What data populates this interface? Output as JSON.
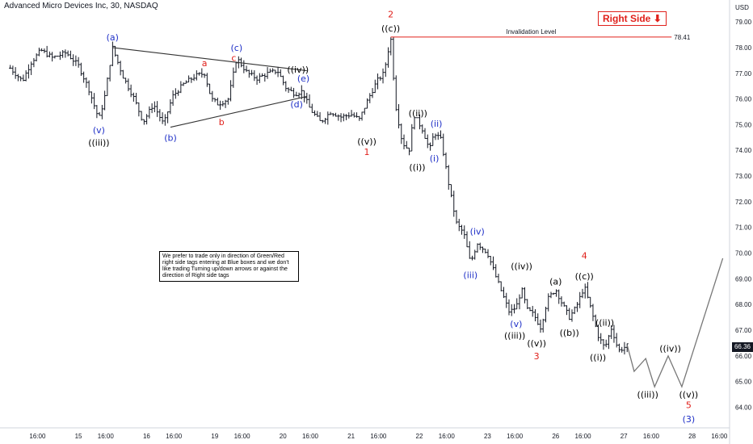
{
  "title": "Advanced Micro Devices Inc, 30, NASDAQ",
  "currency": "USD",
  "last_price": "66.36",
  "right_side_label": "Right Side",
  "right_side_arrow": "⬇",
  "invalidation": {
    "label": "Invalidation Level",
    "value": "78.41"
  },
  "note": "We prefer to trade only in direction of Green/Red right side tags entering at Blue boxes and we don't like trading Turning up/down arrows or against the direction of Right side tags",
  "colors": {
    "red": "#e0201b",
    "blue": "#1e2fc7",
    "black": "#000000",
    "candle": "#131722",
    "projection": "#777777"
  },
  "chart_data": {
    "type": "ohlc",
    "y_axis": {
      "min": 63.2,
      "max": 79.6,
      "ticks": [
        "64.00",
        "65.00",
        "66.00",
        "67.00",
        "68.00",
        "69.00",
        "70.00",
        "71.00",
        "72.00",
        "73.00",
        "74.00",
        "75.00",
        "76.00",
        "77.00",
        "78.00",
        "79.00"
      ]
    },
    "x_ticks": [
      {
        "t": 0.4,
        "label": "16:00"
      },
      {
        "t": 1.0,
        "label": "15"
      },
      {
        "t": 1.4,
        "label": "16:00"
      },
      {
        "t": 2.0,
        "label": "16"
      },
      {
        "t": 2.4,
        "label": "16:00"
      },
      {
        "t": 3.0,
        "label": "19"
      },
      {
        "t": 3.4,
        "label": "16:00"
      },
      {
        "t": 4.0,
        "label": "20"
      },
      {
        "t": 4.4,
        "label": "16:00"
      },
      {
        "t": 5.0,
        "label": "21"
      },
      {
        "t": 5.4,
        "label": "16:00"
      },
      {
        "t": 6.0,
        "label": "22"
      },
      {
        "t": 6.4,
        "label": "16:00"
      },
      {
        "t": 7.0,
        "label": "23"
      },
      {
        "t": 7.4,
        "label": "16:00"
      },
      {
        "t": 8.0,
        "label": "26"
      },
      {
        "t": 8.4,
        "label": "16:00"
      },
      {
        "t": 9.0,
        "label": "27"
      },
      {
        "t": 9.4,
        "label": "16:00"
      },
      {
        "t": 10.0,
        "label": "28"
      },
      {
        "t": 10.4,
        "label": "16:00"
      }
    ],
    "path": [
      [
        0.0,
        77.2
      ],
      [
        0.18,
        76.7
      ],
      [
        0.3,
        77.4
      ],
      [
        0.45,
        77.9
      ],
      [
        0.62,
        77.6
      ],
      [
        0.82,
        77.8
      ],
      [
        1.0,
        77.3
      ],
      [
        1.15,
        76.4
      ],
      [
        1.3,
        75.2
      ],
      [
        1.38,
        76.0
      ],
      [
        1.5,
        78.0
      ],
      [
        1.65,
        76.9
      ],
      [
        1.82,
        76.0
      ],
      [
        1.95,
        75.1
      ],
      [
        2.1,
        75.8
      ],
      [
        2.25,
        75.0
      ],
      [
        2.38,
        76.1
      ],
      [
        2.55,
        76.6
      ],
      [
        2.72,
        76.9
      ],
      [
        2.85,
        77.0
      ],
      [
        2.95,
        76.0
      ],
      [
        3.05,
        75.8
      ],
      [
        3.2,
        76.0
      ],
      [
        3.32,
        77.6
      ],
      [
        3.48,
        77.0
      ],
      [
        3.62,
        76.8
      ],
      [
        3.78,
        77.0
      ],
      [
        3.92,
        77.1
      ],
      [
        4.05,
        76.4
      ],
      [
        4.18,
        76.2
      ],
      [
        4.28,
        76.3
      ],
      [
        4.4,
        75.6
      ],
      [
        4.55,
        75.1
      ],
      [
        4.7,
        75.5
      ],
      [
        4.85,
        75.3
      ],
      [
        5.0,
        75.4
      ],
      [
        5.12,
        75.2
      ],
      [
        5.25,
        76.0
      ],
      [
        5.38,
        76.7
      ],
      [
        5.48,
        77.0
      ],
      [
        5.58,
        78.4
      ],
      [
        5.65,
        75.8
      ],
      [
        5.75,
        74.3
      ],
      [
        5.85,
        74.0
      ],
      [
        5.92,
        75.4
      ],
      [
        6.05,
        74.8
      ],
      [
        6.15,
        74.0
      ],
      [
        6.22,
        74.7
      ],
      [
        6.32,
        74.4
      ],
      [
        6.45,
        72.4
      ],
      [
        6.55,
        71.1
      ],
      [
        6.65,
        70.8
      ],
      [
        6.75,
        69.6
      ],
      [
        6.85,
        70.4
      ],
      [
        7.0,
        70.0
      ],
      [
        7.12,
        69.1
      ],
      [
        7.22,
        68.4
      ],
      [
        7.32,
        67.7
      ],
      [
        7.42,
        67.9
      ],
      [
        7.5,
        68.6
      ],
      [
        7.58,
        67.8
      ],
      [
        7.68,
        67.6
      ],
      [
        7.78,
        67.1
      ],
      [
        7.88,
        68.2
      ],
      [
        8.0,
        68.6
      ],
      [
        8.1,
        68.0
      ],
      [
        8.2,
        67.5
      ],
      [
        8.3,
        67.9
      ],
      [
        8.42,
        68.7
      ],
      [
        8.52,
        67.8
      ],
      [
        8.62,
        66.8
      ],
      [
        8.72,
        66.3
      ],
      [
        8.82,
        67.1
      ],
      [
        8.92,
        66.2
      ],
      [
        9.05,
        66.4
      ]
    ],
    "projection": [
      [
        9.05,
        66.4
      ],
      [
        9.15,
        65.4
      ],
      [
        9.32,
        65.9
      ],
      [
        9.45,
        64.8
      ],
      [
        9.65,
        66.0
      ],
      [
        9.85,
        64.8
      ],
      [
        10.45,
        69.8
      ]
    ],
    "triangle": {
      "upper": [
        [
          1.5,
          78.0
        ],
        [
          4.35,
          77.1
        ]
      ],
      "lower": [
        [
          2.35,
          74.9
        ],
        [
          4.35,
          76.1
        ]
      ]
    },
    "invalidation_line": {
      "t_start": 5.58,
      "t_end": 9.7,
      "value": 78.41
    },
    "labels": [
      {
        "text": "(a)",
        "t": 1.5,
        "v": 78.4,
        "color": "blue"
      },
      {
        "text": "(v)",
        "t": 1.3,
        "v": 74.8,
        "color": "blue"
      },
      {
        "text": "((iii))",
        "t": 1.3,
        "v": 74.3,
        "color": "black"
      },
      {
        "text": "(b)",
        "t": 2.35,
        "v": 74.5,
        "color": "blue"
      },
      {
        "text": "a",
        "t": 2.85,
        "v": 77.4,
        "color": "red"
      },
      {
        "text": "b",
        "t": 3.1,
        "v": 75.1,
        "color": "red"
      },
      {
        "text": "(c)",
        "t": 3.32,
        "v": 78.0,
        "color": "blue"
      },
      {
        "text": "c",
        "t": 3.28,
        "v": 77.6,
        "color": "red"
      },
      {
        "text": "((iv))",
        "t": 4.22,
        "v": 77.15,
        "color": "black"
      },
      {
        "text": "(e)",
        "t": 4.3,
        "v": 76.8,
        "color": "blue"
      },
      {
        "text": "(d)",
        "t": 4.2,
        "v": 75.8,
        "color": "blue"
      },
      {
        "text": "((v))",
        "t": 5.23,
        "v": 74.35,
        "color": "black"
      },
      {
        "text": "1",
        "t": 5.23,
        "v": 73.95,
        "color": "red"
      },
      {
        "text": "2",
        "t": 5.58,
        "v": 79.3,
        "color": "red"
      },
      {
        "text": "((c))",
        "t": 5.58,
        "v": 78.75,
        "color": "black"
      },
      {
        "text": "((ii))",
        "t": 5.98,
        "v": 75.45,
        "color": "black"
      },
      {
        "text": "(ii)",
        "t": 6.25,
        "v": 75.05,
        "color": "blue"
      },
      {
        "text": "(i)",
        "t": 6.22,
        "v": 73.7,
        "color": "blue"
      },
      {
        "text": "((i))",
        "t": 5.97,
        "v": 73.35,
        "color": "black"
      },
      {
        "text": "(iv)",
        "t": 6.85,
        "v": 70.85,
        "color": "blue"
      },
      {
        "text": "(iii)",
        "t": 6.75,
        "v": 69.15,
        "color": "blue"
      },
      {
        "text": "((iv))",
        "t": 7.5,
        "v": 69.5,
        "color": "black"
      },
      {
        "text": "(v)",
        "t": 7.42,
        "v": 67.25,
        "color": "blue"
      },
      {
        "text": "((iii))",
        "t": 7.4,
        "v": 66.8,
        "color": "black"
      },
      {
        "text": "((v))",
        "t": 7.72,
        "v": 66.5,
        "color": "black"
      },
      {
        "text": "3",
        "t": 7.72,
        "v": 66.0,
        "color": "red"
      },
      {
        "text": "(a)",
        "t": 8.0,
        "v": 68.9,
        "color": "black"
      },
      {
        "text": "((b))",
        "t": 8.2,
        "v": 66.9,
        "color": "black"
      },
      {
        "text": "4",
        "t": 8.42,
        "v": 69.9,
        "color": "red"
      },
      {
        "text": "((c))",
        "t": 8.42,
        "v": 69.1,
        "color": "black"
      },
      {
        "text": "((ii))",
        "t": 8.72,
        "v": 67.3,
        "color": "black"
      },
      {
        "text": "((i))",
        "t": 8.62,
        "v": 65.95,
        "color": "black"
      },
      {
        "text": "((iv))",
        "t": 9.68,
        "v": 66.3,
        "color": "black"
      },
      {
        "text": "((iii))",
        "t": 9.35,
        "v": 64.5,
        "color": "black"
      },
      {
        "text": "((v))",
        "t": 9.95,
        "v": 64.5,
        "color": "black"
      },
      {
        "text": "5",
        "t": 9.95,
        "v": 64.1,
        "color": "red"
      },
      {
        "text": "(3)",
        "t": 9.95,
        "v": 63.55,
        "color": "blue"
      }
    ]
  }
}
